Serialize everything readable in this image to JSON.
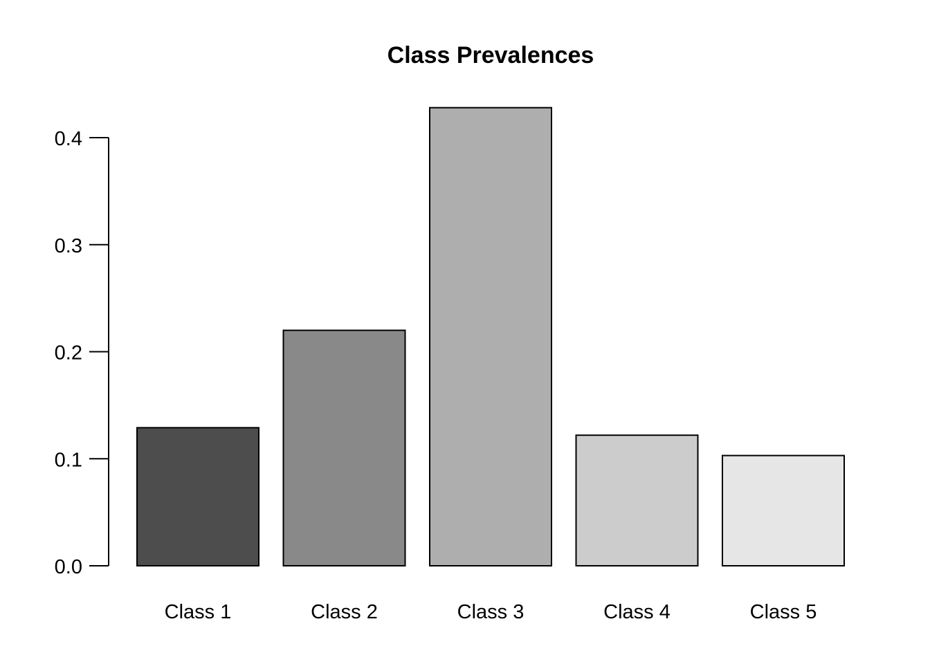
{
  "chart_data": {
    "type": "bar",
    "title": "Class Prevalences",
    "xlabel": "",
    "ylabel": "",
    "categories": [
      "Class 1",
      "Class 2",
      "Class 3",
      "Class 4",
      "Class 5"
    ],
    "values": [
      0.129,
      0.22,
      0.428,
      0.122,
      0.103
    ],
    "colors": [
      "#4d4d4d",
      "#898989",
      "#aeaeae",
      "#cccccc",
      "#e6e6e6"
    ],
    "ylim": [
      0,
      0.4
    ],
    "yticks": [
      0.0,
      0.1,
      0.2,
      0.3,
      0.4
    ],
    "ytick_labels": [
      "0.0",
      "0.1",
      "0.2",
      "0.3",
      "0.4"
    ],
    "grid": false,
    "legend": "none"
  }
}
